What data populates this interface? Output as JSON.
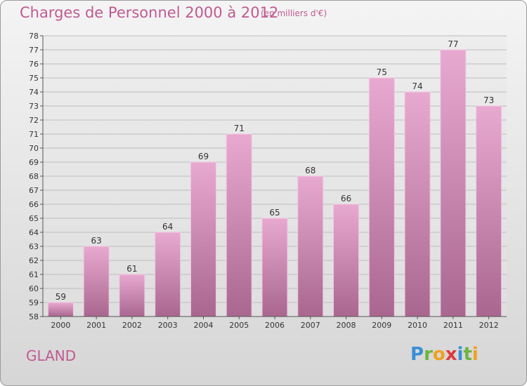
{
  "header": {
    "title": "Charges de Personnel 2000 à 2012",
    "subtitle": "(en milliers d'€)"
  },
  "footer": {
    "commune": "GLAND",
    "logo_text": "Proxiti",
    "logo_letters": [
      {
        "char": "P",
        "color": "#3a8fd6"
      },
      {
        "char": "r",
        "color": "#6fb43f"
      },
      {
        "char": "o",
        "color": "#f0a020"
      },
      {
        "char": "x",
        "color": "#e03a3a"
      },
      {
        "char": "i",
        "color": "#3a8fd6"
      },
      {
        "char": "t",
        "color": "#6fb43f"
      },
      {
        "char": "i",
        "color": "#f0a020"
      }
    ]
  },
  "colors": {
    "accent": "#c05a91",
    "bar_top": "#e8a9d0",
    "bar_bottom": "#a9678f"
  },
  "chart_data": {
    "type": "bar",
    "title": "Charges de Personnel 2000 à 2012",
    "subtitle": "(en milliers d'€)",
    "categories": [
      "2000",
      "2001",
      "2002",
      "2003",
      "2004",
      "2005",
      "2006",
      "2007",
      "2008",
      "2009",
      "2010",
      "2011",
      "2012"
    ],
    "values": [
      59,
      63,
      61,
      64,
      69,
      71,
      65,
      68,
      66,
      75,
      74,
      77,
      73
    ],
    "ylim": [
      58,
      78
    ],
    "yticks": [
      58,
      59,
      60,
      61,
      62,
      63,
      64,
      65,
      66,
      67,
      68,
      69,
      70,
      71,
      72,
      73,
      74,
      75,
      76,
      77,
      78
    ],
    "grid": true,
    "data_labels": true
  }
}
